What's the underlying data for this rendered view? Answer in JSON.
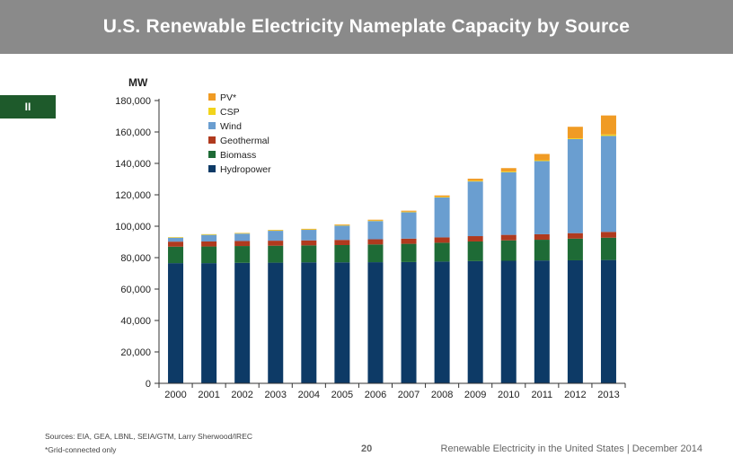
{
  "page": {
    "title": "U.S. Renewable Electricity Nameplate Capacity by Source",
    "section_tab": "II",
    "sources": "Sources: EIA, GEA, LBNL, SEIA/GTM, Larry Sherwood/IREC",
    "note": "*Grid-connected only",
    "page_number": "20",
    "footer_right": "Renewable Electricity in the United States  |  December 2014"
  },
  "chart_data": {
    "type": "bar",
    "stacked": true,
    "title": "",
    "ylabel": "MW",
    "xlabel": "",
    "ylim": [
      0,
      180000
    ],
    "ytick_values": [
      0,
      20000,
      40000,
      60000,
      80000,
      100000,
      120000,
      140000,
      160000,
      180000
    ],
    "ytick_labels": [
      "0",
      "20,000",
      "40,000",
      "60,000",
      "80,000",
      "100,000",
      "120,000",
      "140,000",
      "160,000",
      "180,000"
    ],
    "grid": false,
    "legend_position": "top-left",
    "categories": [
      "2000",
      "2001",
      "2002",
      "2003",
      "2004",
      "2005",
      "2006",
      "2007",
      "2008",
      "2009",
      "2010",
      "2011",
      "2012",
      "2013"
    ],
    "series": [
      {
        "name": "Hydropower",
        "color": "#0d3a66",
        "values": [
          76500,
          76500,
          76700,
          76800,
          77000,
          77000,
          77100,
          77200,
          77500,
          77800,
          78000,
          78200,
          78300,
          78500
        ]
      },
      {
        "name": "Biomass",
        "color": "#1e6b36",
        "values": [
          10500,
          10600,
          10700,
          10800,
          10800,
          11000,
          11300,
          11600,
          12000,
          12500,
          13000,
          13200,
          13800,
          14200
        ]
      },
      {
        "name": "Geothermal",
        "color": "#b03a1e",
        "values": [
          3200,
          3200,
          3200,
          3200,
          3200,
          3300,
          3300,
          3300,
          3400,
          3400,
          3500,
          3500,
          3500,
          3700
        ]
      },
      {
        "name": "Wind",
        "color": "#6a9ed0",
        "values": [
          2500,
          4200,
          4700,
          6300,
          6700,
          9100,
          11600,
          16800,
          25400,
          34800,
          39900,
          46600,
          59900,
          61100
        ]
      },
      {
        "name": "CSP",
        "color": "#f2d41c",
        "values": [
          350,
          350,
          350,
          350,
          350,
          350,
          350,
          400,
          400,
          450,
          500,
          500,
          500,
          900
        ]
      },
      {
        "name": "PV*",
        "color": "#f09b24",
        "values": [
          50,
          80,
          120,
          200,
          300,
          400,
          500,
          600,
          900,
          1300,
          2100,
          4000,
          7300,
          12100
        ]
      }
    ],
    "legend_order": [
      "PV*",
      "CSP",
      "Wind",
      "Geothermal",
      "Biomass",
      "Hydropower"
    ]
  }
}
